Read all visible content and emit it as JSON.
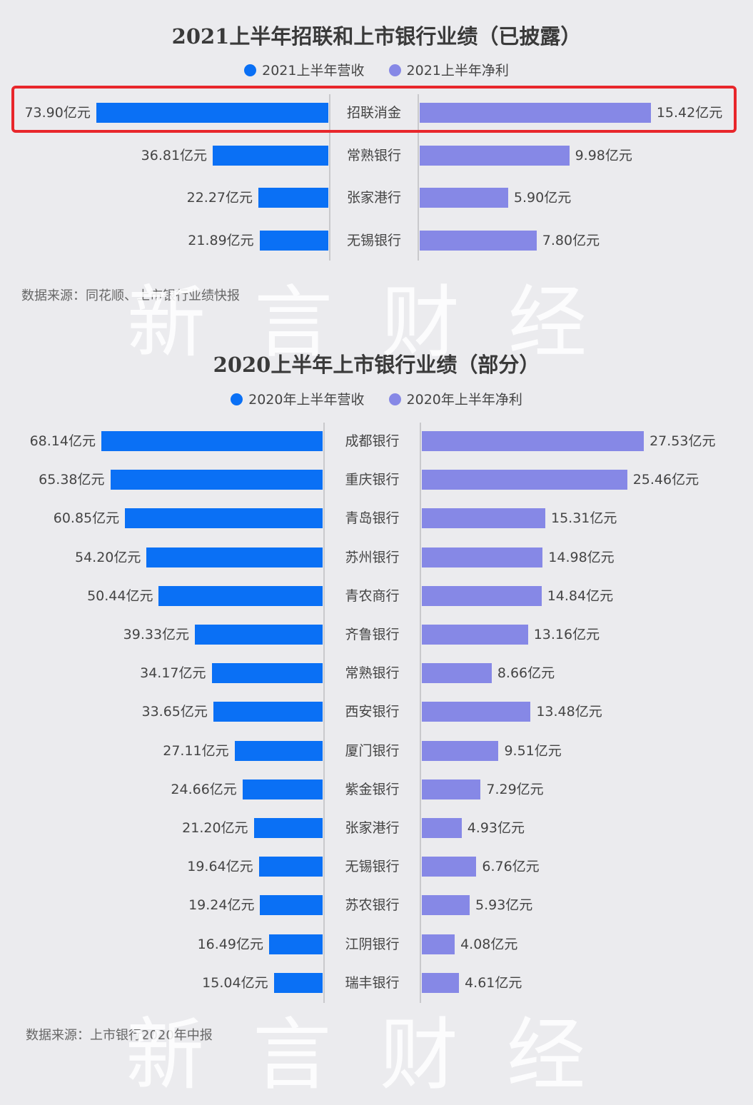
{
  "chart_data": [
    {
      "type": "bar",
      "title": "2021上半年招联和上市银行业绩（已披露）",
      "series": [
        {
          "name": "2021上半年营收",
          "values": [
            73.9,
            36.81,
            22.27,
            21.89
          ]
        },
        {
          "name": "2021上半年净利",
          "values": [
            15.42,
            9.98,
            5.9,
            7.8
          ]
        }
      ],
      "categories": [
        "招联消金",
        "常熟银行",
        "张家港行",
        "无锡银行"
      ],
      "value_labels": {
        "revenue": [
          "73.90亿元",
          "36.81亿元",
          "22.27亿元",
          "21.89亿元"
        ],
        "profit": [
          "15.42亿元",
          "9.98亿元",
          "5.90亿元",
          "7.80亿元"
        ]
      },
      "highlighted_category": "招联消金",
      "colors": {
        "revenue": "#0a70f5",
        "profit": "#8688e6",
        "highlight": "#e8262b"
      },
      "legend_position": "top-center",
      "source": "数据来源：同花顺、上市银行业绩快报"
    },
    {
      "type": "bar",
      "title": "2020上半年上市银行业绩（部分）",
      "series": [
        {
          "name": "2020年上半年营收",
          "values": [
            68.14,
            65.38,
            60.85,
            54.2,
            50.44,
            39.33,
            34.17,
            33.65,
            27.11,
            24.66,
            21.2,
            19.64,
            19.24,
            16.49,
            15.04
          ]
        },
        {
          "name": "2020年上半年净利",
          "values": [
            27.53,
            25.46,
            15.31,
            14.98,
            14.84,
            13.16,
            8.66,
            13.48,
            9.51,
            7.29,
            4.93,
            6.76,
            5.93,
            4.08,
            4.61
          ]
        }
      ],
      "categories": [
        "成都银行",
        "重庆银行",
        "青岛银行",
        "苏州银行",
        "青农商行",
        "齐鲁银行",
        "常熟银行",
        "西安银行",
        "厦门银行",
        "紫金银行",
        "张家港行",
        "无锡银行",
        "苏农银行",
        "江阴银行",
        "瑞丰银行"
      ],
      "value_labels": {
        "revenue": [
          "68.14亿元",
          "65.38亿元",
          "60.85亿元",
          "54.20亿元",
          "50.44亿元",
          "39.33亿元",
          "34.17亿元",
          "33.65亿元",
          "27.11亿元",
          "24.66亿元",
          "21.20亿元",
          "19.64亿元",
          "19.24亿元",
          "16.49亿元",
          "15.04亿元"
        ],
        "profit": [
          "27.53亿元",
          "25.46亿元",
          "15.31亿元",
          "14.98亿元",
          "14.84亿元",
          "13.16亿元",
          "8.66亿元",
          "13.48亿元",
          "9.51亿元",
          "7.29亿元",
          "4.93亿元",
          "6.76亿元",
          "5.93亿元",
          "4.08亿元",
          "4.61亿元"
        ]
      },
      "colors": {
        "revenue": "#0a70f5",
        "profit": "#8688e6"
      },
      "legend_position": "top-center",
      "source": "数据来源：上市银行2020年中报"
    }
  ],
  "watermark": "新言财经"
}
